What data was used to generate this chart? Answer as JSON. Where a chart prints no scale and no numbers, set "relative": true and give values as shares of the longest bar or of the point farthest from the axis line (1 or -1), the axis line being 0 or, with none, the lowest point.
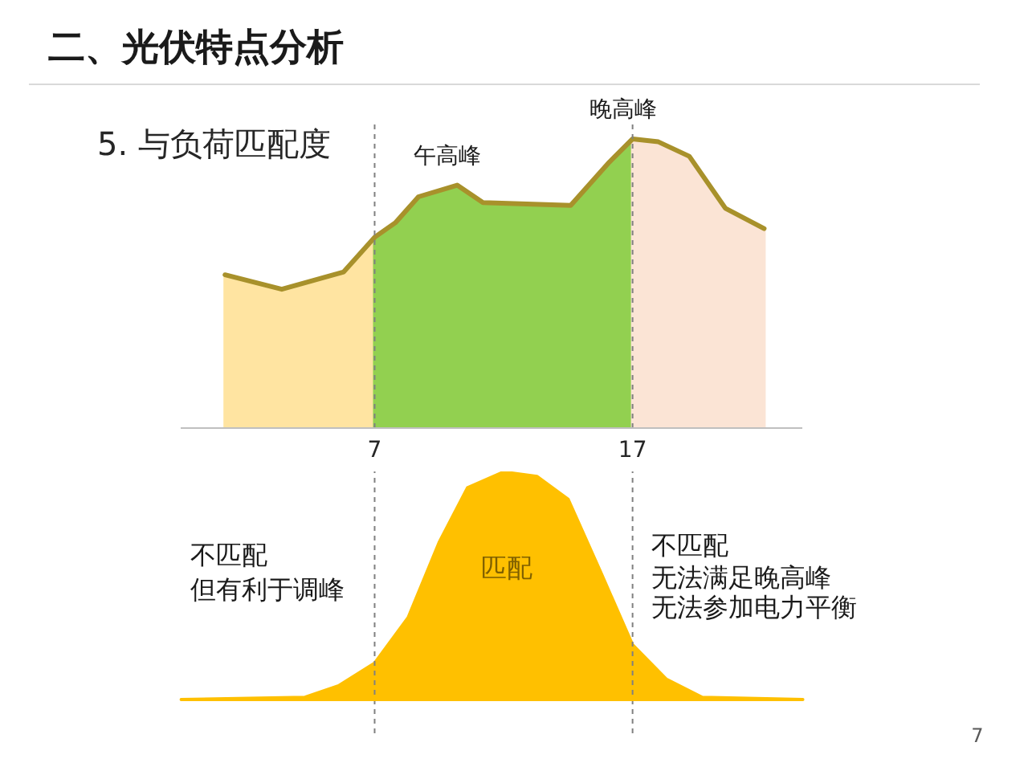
{
  "chart_data": [
    {
      "type": "area",
      "title": "二、光伏特点分析",
      "subtitle": "5. 与负荷匹配度",
      "relative": true,
      "xlim": [
        -0.5,
        23.6
      ],
      "xticks": [
        7,
        17
      ],
      "tick_labels": "x",
      "series": [
        {
          "type": "area",
          "color": "#ffe4a1",
          "x": [
            1.2,
            3.4,
            4.6,
            5.8,
            7
          ],
          "values": [
            0.53,
            0.48,
            0.51,
            0.54,
            0.66
          ]
        },
        {
          "type": "area",
          "color": "#92d050",
          "x": [
            7,
            7.8,
            8.7,
            10.2,
            11.2,
            14.6,
            16.1,
            17
          ],
          "values": [
            0.66,
            0.71,
            0.8,
            0.84,
            0.78,
            0.77,
            0.92,
            1.0
          ]
        },
        {
          "type": "area",
          "color": "#fbe4d5",
          "x": [
            17,
            18,
            19.2,
            20.6,
            22.1
          ],
          "values": [
            1.0,
            0.99,
            0.94,
            0.76,
            0.69
          ]
        },
        {
          "type": "line",
          "color": "#a8912b",
          "x": [
            1.2,
            3.4,
            4.6,
            5.8,
            7,
            7.8,
            8.7,
            10.2,
            11.2,
            14.6,
            16.1,
            17,
            18,
            19.2,
            20.6,
            22.1
          ],
          "values": [
            0.53,
            0.48,
            0.51,
            0.54,
            0.66,
            0.71,
            0.8,
            0.84,
            0.78,
            0.77,
            0.92,
            1.0,
            0.99,
            0.94,
            0.76,
            0.69
          ]
        }
      ],
      "ref_lines": [
        {
          "axis": "x",
          "value": 7,
          "color": "#808080",
          "line_style": "dashed"
        },
        {
          "axis": "x",
          "value": 17,
          "color": "#808080",
          "line_style": "dashed"
        }
      ],
      "annotations": [
        {
          "text": "午高峰",
          "x": 10.2,
          "y": 0.84
        },
        {
          "text": "晚高峰",
          "x": 17,
          "y": 1.0
        }
      ]
    },
    {
      "type": "area",
      "relative": true,
      "xlim": [
        -0.5,
        23.6
      ],
      "tick_labels": false,
      "color": "#ffc000",
      "x": [
        -0.5,
        4.3,
        5.6,
        7,
        8.3,
        9.5,
        10.6,
        12,
        13.3,
        14.5,
        15.8,
        17,
        18.3,
        19.7,
        23.6
      ],
      "values": [
        0,
        0.01,
        0.06,
        0.16,
        0.36,
        0.69,
        0.93,
        1.0,
        0.98,
        0.88,
        0.55,
        0.24,
        0.09,
        0.01,
        0
      ],
      "ref_lines": [
        {
          "axis": "x",
          "value": 7,
          "color": "#808080",
          "line_style": "dashed"
        },
        {
          "axis": "x",
          "value": 17,
          "color": "#808080",
          "line_style": "dashed"
        }
      ],
      "annotations": [
        "不匹配",
        "但有利于调峰",
        "匹配",
        "不匹配",
        "无法满足晚高峰",
        "无法参加电力平衡",
        "7"
      ]
    }
  ]
}
